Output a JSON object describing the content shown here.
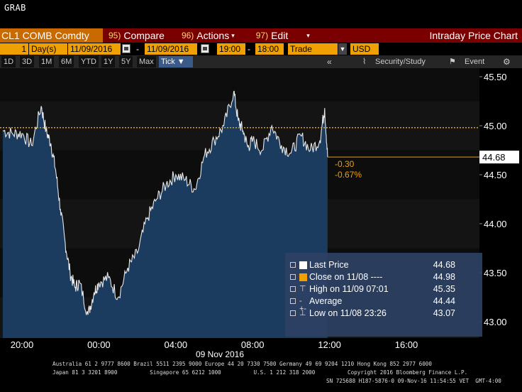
{
  "header": {
    "grab": "GRAB"
  },
  "titlebar": {
    "ticker": "CL1 COMB Comdty",
    "compare_num": "95)",
    "compare": "Compare",
    "actions_num": "96)",
    "actions": "Actions",
    "edit_num": "97)",
    "edit": "Edit",
    "title": "Intraday Price Chart"
  },
  "params": {
    "period_value": "1",
    "period_unit": "Day(s)",
    "start_date": "11/09/2016",
    "end_date": "11/09/2016",
    "start_time": "19:00",
    "end_time": "18:00",
    "field": "Trade",
    "currency": "USD"
  },
  "toolbar": {
    "ranges": [
      "1D",
      "3D",
      "1M",
      "6M",
      "YTD",
      "1Y",
      "5Y",
      "Max"
    ],
    "active": "Tick ▼",
    "security_study": "Security/Study",
    "event": "Event"
  },
  "yaxis": {
    "ticks": [
      "45.50",
      "45.00",
      "44.50",
      "44.00",
      "43.50",
      "43.00"
    ],
    "last_label": "44.68",
    "change": "-0.30",
    "change_pct": "-0.67%"
  },
  "xaxis": {
    "ticks": [
      "20:00",
      "00:00",
      "04:00",
      "08:00",
      "12:00",
      "16:00"
    ],
    "date_label": "09 Nov 2016"
  },
  "legend": [
    {
      "label": "Last Price",
      "value": "44.68",
      "icon": "white-square"
    },
    {
      "label": "Close on 11/08 ----",
      "value": "44.98",
      "icon": "orange-square"
    },
    {
      "label": "High on 11/09 07:01",
      "value": "45.35",
      "icon": "high-marker"
    },
    {
      "label": "Average",
      "value": "44.44",
      "icon": "average-marker"
    },
    {
      "label": "Low on 11/08 23:26",
      "value": "43.07",
      "icon": "low-marker"
    }
  ],
  "footer": {
    "line1": "Australia 61 2 9777 8600 Brazil 5511 2395 9000 Europe 44 20 7330 7500 Germany 49 69 9204 1210 Hong Kong 852 2977 6000",
    "line2": "Japan 81 3 3201 8900          Singapore 65 6212 1000          U.S. 1 212 318 2000          Copyright 2016 Bloomberg Finance L.P.",
    "line3": "SN 725688 H187-5876-0 09-Nov-16 11:54:55 VET  GMT-4:00"
  },
  "colors": {
    "accent": "#f0a000",
    "titlebar": "#7a0000",
    "area": "#1b3b5f",
    "close_line": "#f0a000"
  },
  "chart_data": {
    "type": "area",
    "title": "Intraday Price Chart",
    "xlabel": "09 Nov 2016",
    "ylabel": "",
    "ylim": [
      42.9,
      45.6
    ],
    "x_ticks": [
      "20:00",
      "00:00",
      "04:00",
      "08:00",
      "12:00",
      "16:00"
    ],
    "reference_line": {
      "name": "Close on 11/08",
      "value": 44.98
    },
    "series": [
      {
        "name": "Last Price",
        "x": [
          "19:00",
          "19:30",
          "20:00",
          "20:30",
          "21:00",
          "21:15",
          "21:30",
          "21:45",
          "22:00",
          "22:15",
          "22:30",
          "22:45",
          "23:00",
          "23:26",
          "23:45",
          "00:00",
          "00:30",
          "01:00",
          "01:30",
          "02:00",
          "02:30",
          "03:00",
          "03:30",
          "04:00",
          "04:30",
          "05:00",
          "05:30",
          "06:00",
          "06:30",
          "07:01",
          "07:15",
          "07:30",
          "07:45",
          "08:00",
          "08:30",
          "09:00",
          "09:30",
          "10:00",
          "10:30",
          "11:00",
          "11:30",
          "11:45",
          "11:54"
        ],
        "values": [
          44.95,
          44.92,
          44.92,
          44.8,
          45.2,
          44.95,
          44.82,
          44.55,
          44.15,
          43.8,
          43.5,
          43.35,
          43.4,
          43.07,
          43.3,
          43.4,
          43.45,
          43.25,
          43.55,
          43.7,
          44.05,
          44.25,
          44.4,
          44.5,
          44.45,
          44.35,
          44.7,
          44.85,
          45.0,
          45.35,
          45.05,
          44.95,
          44.78,
          44.85,
          44.75,
          45.0,
          44.8,
          44.72,
          44.9,
          44.75,
          44.85,
          45.18,
          44.68
        ]
      }
    ],
    "grid": false,
    "legend_position": "bottom-right"
  }
}
